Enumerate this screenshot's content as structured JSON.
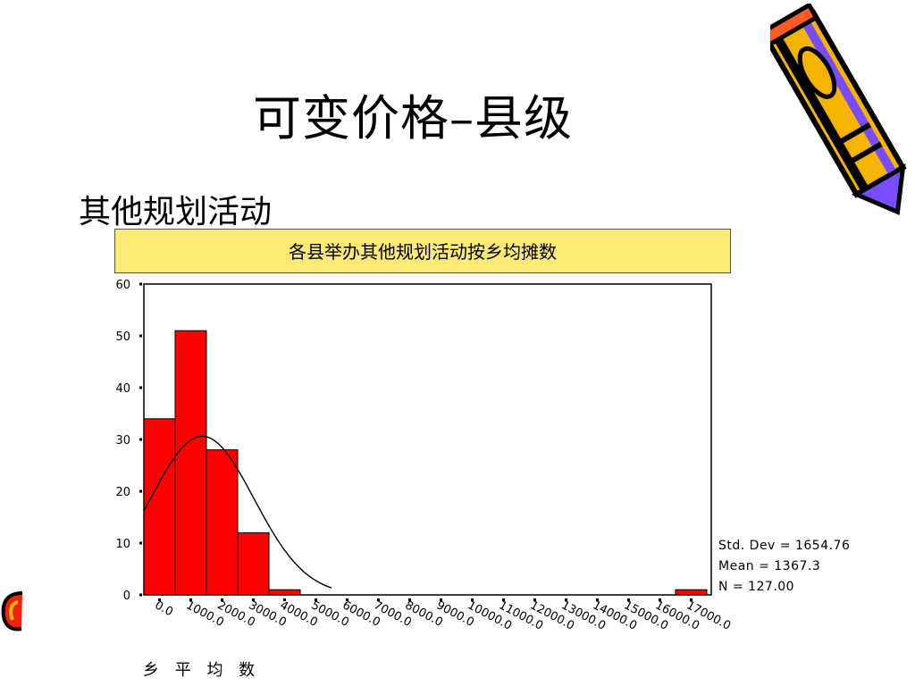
{
  "slide": {
    "title": "可变价格–县级",
    "subtitle": "其他规划活动"
  },
  "chart_data": {
    "type": "bar",
    "title": "各县举办其他规划活动按乡均摊数",
    "xlabel": "乡 平 均 数",
    "ylabel": "",
    "ylim": [
      0,
      60
    ],
    "y_ticks": [
      "0",
      "10",
      "20",
      "30",
      "40",
      "50",
      "60"
    ],
    "x_tick_labels": [
      "0.0",
      "1000.0",
      "2000.0",
      "3000.0",
      "4000.0",
      "5000.0",
      "6000.0",
      "7000.0",
      "8000.0",
      "9000.0",
      "10000.0",
      "11000.0",
      "12000.0",
      "13000.0",
      "14000.0",
      "15000.0",
      "16000.0",
      "17000.0"
    ],
    "bin_width": 1000,
    "bins": [
      {
        "center": 0,
        "count": 34
      },
      {
        "center": 1000,
        "count": 51
      },
      {
        "center": 2000,
        "count": 28
      },
      {
        "center": 3000,
        "count": 12
      },
      {
        "center": 4000,
        "count": 1
      },
      {
        "center": 5000,
        "count": 0
      },
      {
        "center": 6000,
        "count": 0
      },
      {
        "center": 7000,
        "count": 0
      },
      {
        "center": 8000,
        "count": 0
      },
      {
        "center": 9000,
        "count": 0
      },
      {
        "center": 10000,
        "count": 0
      },
      {
        "center": 11000,
        "count": 0
      },
      {
        "center": 12000,
        "count": 0
      },
      {
        "center": 13000,
        "count": 0
      },
      {
        "center": 14000,
        "count": 0
      },
      {
        "center": 15000,
        "count": 0
      },
      {
        "center": 16000,
        "count": 0
      },
      {
        "center": 17000,
        "count": 1
      }
    ],
    "normal_curve": {
      "mean": 1367.3,
      "std": 1654.76,
      "n": 127
    },
    "stats": {
      "std_dev": "Std. Dev = 1654.76",
      "mean": "Mean = 1367.3",
      "n": "N = 127.00"
    },
    "bar_color": "#ff0000",
    "grid": false
  }
}
